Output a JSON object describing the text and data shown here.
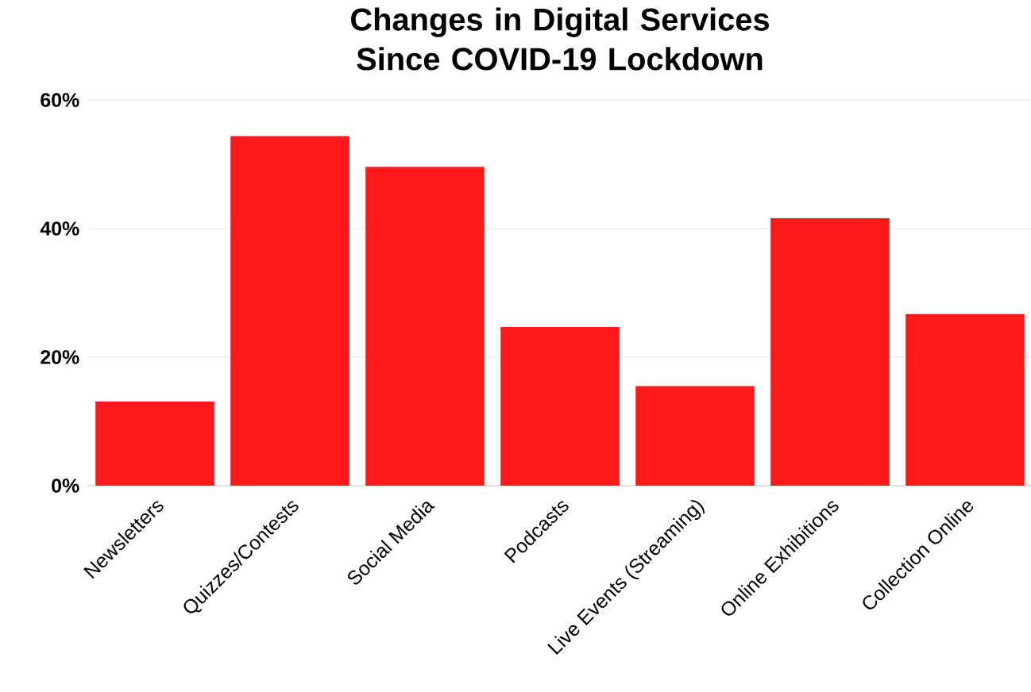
{
  "chart_data": {
    "type": "bar",
    "title": "Changes in Digital Services Since COVID-19 Lockdown",
    "categories": [
      "Newsletters",
      "Quizzes/Contests",
      "Social Media",
      "Podcasts",
      "Live Events (Streaming)",
      "Online Exhibitions",
      "Collection Online"
    ],
    "values": [
      13.1,
      54.4,
      49.6,
      24.7,
      15.5,
      41.6,
      26.7
    ],
    "color": "#fe1a1c",
    "ylim": [
      0,
      60
    ],
    "yticks": [
      {
        "value": 0,
        "label": "0%"
      },
      {
        "value": 20,
        "label": "20%"
      },
      {
        "value": 40,
        "label": "40%"
      },
      {
        "value": 60,
        "label": "60%"
      }
    ],
    "grid": "y"
  }
}
